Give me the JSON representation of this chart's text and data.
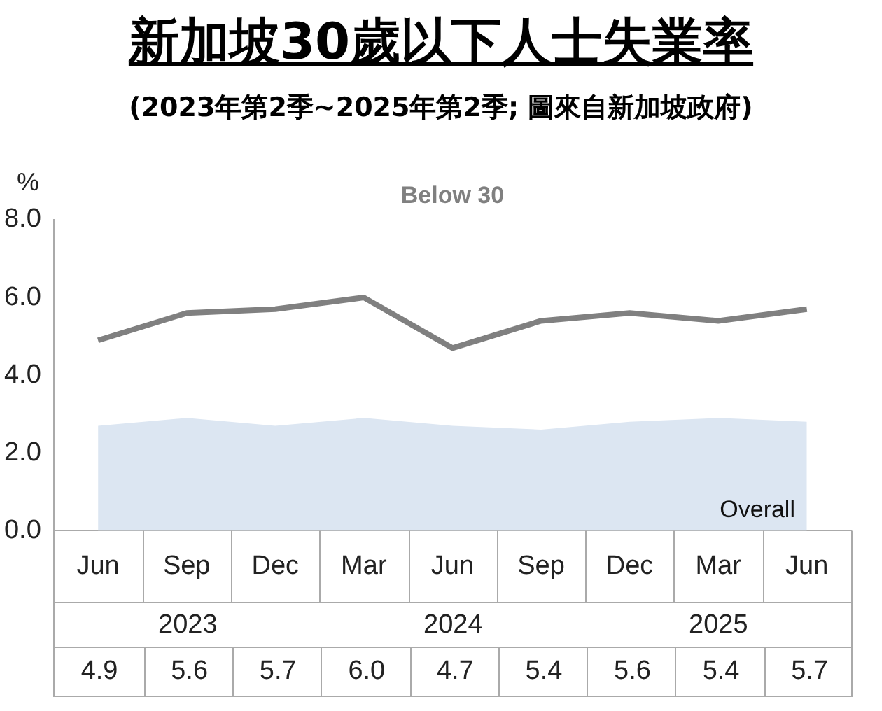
{
  "chart_data": {
    "type": "line",
    "title": "新加坡30歲以下人士失業率",
    "subtitle": "(2023年第2季~2025年第2季; 圖來自新加坡政府)",
    "ylabel": "%",
    "categories": [
      "Jun",
      "Sep",
      "Dec",
      "Mar",
      "Jun",
      "Sep",
      "Dec",
      "Mar",
      "Jun"
    ],
    "series": [
      {
        "name": "Overall",
        "type": "area",
        "color": "#dce6f2",
        "values": [
          2.7,
          2.9,
          2.7,
          2.9,
          2.7,
          2.6,
          2.8,
          2.9,
          2.8
        ]
      },
      {
        "name": "Below 30",
        "color": "#808080",
        "values": [
          4.9,
          5.6,
          5.7,
          6.0,
          4.7,
          5.4,
          5.6,
          5.4,
          5.7
        ],
        "value_labels": [
          "4.9",
          "5.6",
          "5.7",
          "6.0",
          "4.7",
          "5.4",
          "5.6",
          "5.4",
          "5.7"
        ]
      }
    ],
    "annotations": [
      "2023",
      "2024",
      "2025"
    ],
    "ylim": [
      0,
      8
    ],
    "yticks": [
      {
        "value": 0,
        "label": "0.0"
      },
      {
        "value": 2,
        "label": "2.0"
      },
      {
        "value": 4,
        "label": "4.0"
      },
      {
        "value": 6,
        "label": "6.0"
      },
      {
        "value": 8,
        "label": "8.0"
      }
    ],
    "grid": false,
    "legend": false,
    "marker": "none",
    "line_style": "solid"
  }
}
